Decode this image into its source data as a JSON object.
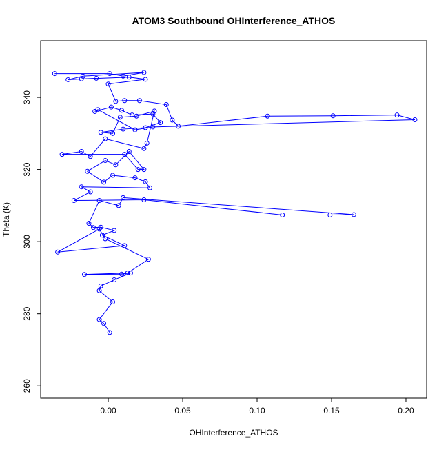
{
  "chart_data": {
    "type": "line",
    "title": "ATOM3 Southbound OHInterference_ATHOS",
    "x_label": "OHInterference_ATHOS",
    "y_label": "Theta (K)",
    "color": "#0000ff",
    "markers": true,
    "grid": false,
    "xlim": [
      -0.0454,
      0.2139
    ],
    "ylim": [
      256.6,
      355.7
    ],
    "xticks": [
      {
        "value": 0,
        "label": "0.00"
      },
      {
        "value": 0.05,
        "label": "0.05"
      },
      {
        "value": 0.1,
        "label": "0.10"
      },
      {
        "value": 0.15,
        "label": "0.15"
      },
      {
        "value": 0.2,
        "label": "0.20"
      }
    ],
    "yticks": [
      260,
      280,
      300,
      320,
      340
    ],
    "x": [
      -0.036,
      0.001,
      0.01,
      0.024,
      -0.017,
      -0.027,
      -0.008,
      -0.018,
      0.014,
      0.025,
      0.0,
      0.005,
      0.011,
      0.021,
      0.039,
      0.043,
      0.047,
      0.107,
      0.151,
      0.194,
      0.206,
      0.03,
      0.018,
      -0.007,
      -0.009,
      0.002,
      0.009,
      0.016,
      0.03,
      0.035,
      0.025,
      0.01,
      -0.005,
      0.003,
      0.008,
      0.019,
      0.031,
      0.026,
      0.024,
      -0.002,
      -0.012,
      -0.018,
      -0.031,
      0.011,
      0.02,
      0.024,
      0.014,
      0.005,
      -0.002,
      -0.014,
      -0.003,
      0.003,
      0.018,
      0.025,
      0.028,
      -0.018,
      -0.012,
      -0.023,
      0.024,
      0.117,
      0.149,
      0.165,
      0.01,
      0.007,
      -0.006,
      -0.013,
      -0.01,
      -0.005,
      0.004,
      -0.004,
      0.011,
      -0.034,
      -0.006,
      -0.002,
      0.027,
      0.013,
      -0.016,
      0.009,
      0.015,
      0.004,
      -0.005,
      -0.006,
      0.003,
      -0.006,
      -0.003,
      0.001
    ],
    "values": [
      346.6,
      346.6,
      345.9,
      346.9,
      345.9,
      344.9,
      345.3,
      345.1,
      345.6,
      345.0,
      343.7,
      338.9,
      339.1,
      339.1,
      338.0,
      333.7,
      332.0,
      334.8,
      334.9,
      335.1,
      333.8,
      331.8,
      331.0,
      336.6,
      336.1,
      337.3,
      336.4,
      335.1,
      335.4,
      333.0,
      331.6,
      331.2,
      330.3,
      330.0,
      334.5,
      334.8,
      336.2,
      327.3,
      325.8,
      328.5,
      323.6,
      325.0,
      324.2,
      324.2,
      320.0,
      320.0,
      325.0,
      321.3,
      322.5,
      319.5,
      316.5,
      318.4,
      317.7,
      316.6,
      314.9,
      315.2,
      313.8,
      311.4,
      311.6,
      307.4,
      307.4,
      307.5,
      312.2,
      310.0,
      311.4,
      305.1,
      303.9,
      304.0,
      303.1,
      301.8,
      298.9,
      297.1,
      303.5,
      300.8,
      295.1,
      291.3,
      290.9,
      291.0,
      291.3,
      289.4,
      287.7,
      286.4,
      283.3,
      278.4,
      277.3,
      274.8
    ]
  }
}
